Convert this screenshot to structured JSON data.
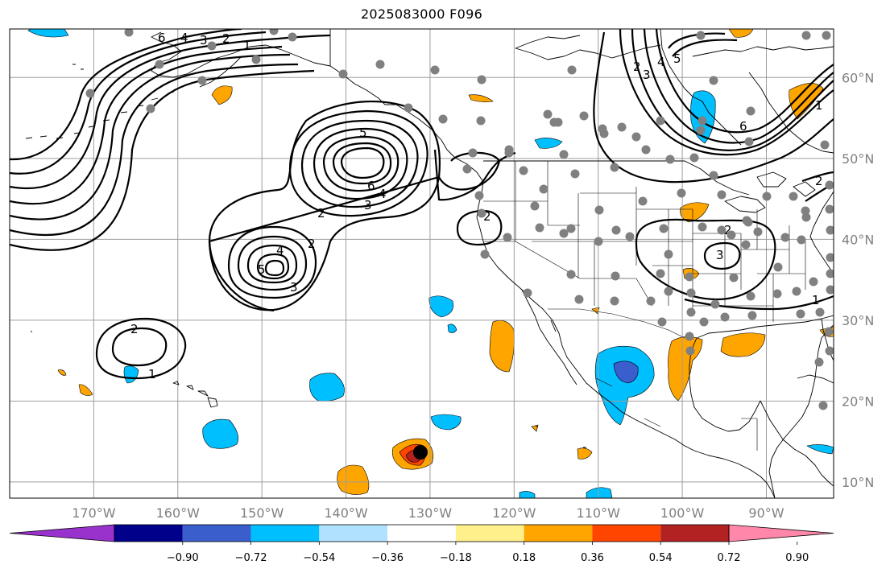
{
  "title": "2025083000 F096",
  "map": {
    "projection": "plate-carree",
    "lon_range": [
      -180,
      -82
    ],
    "lat_range": [
      8,
      66
    ],
    "lat_ticks": [
      {
        "value": 10,
        "label": "10°N"
      },
      {
        "value": 20,
        "label": "20°N"
      },
      {
        "value": 30,
        "label": "30°N"
      },
      {
        "value": 40,
        "label": "40°N"
      },
      {
        "value": 50,
        "label": "50°N"
      },
      {
        "value": 60,
        "label": "60°N"
      }
    ],
    "lon_ticks": [
      {
        "value": -170,
        "label": "170°W"
      },
      {
        "value": -160,
        "label": "160°W"
      },
      {
        "value": -150,
        "label": "150°W"
      },
      {
        "value": -140,
        "label": "140°W"
      },
      {
        "value": -130,
        "label": "130°W"
      },
      {
        "value": -120,
        "label": "120°W"
      },
      {
        "value": -110,
        "label": "110°W"
      },
      {
        "value": -100,
        "label": "100°W"
      },
      {
        "value": -90,
        "label": "90°W"
      }
    ],
    "gridlines": true,
    "land_outline_color": "#000000",
    "station_color": "#808080",
    "storm_marker_color": "#000000"
  },
  "colorbar": {
    "boundaries": [
      -0.9,
      -0.72,
      -0.54,
      -0.36,
      -0.18,
      0.18,
      0.36,
      0.54,
      0.72,
      0.9
    ],
    "tick_labels": [
      "−0.90",
      "−0.72",
      "−0.54",
      "−0.36",
      "−0.18",
      "0.18",
      "0.36",
      "0.54",
      "0.72",
      "0.90"
    ],
    "colors": [
      "#9932cc",
      "#00008b",
      "#3a5fcd",
      "#00bfff",
      "#b0e2ff",
      "#ffffff",
      "#fff08c",
      "#ffa500",
      "#ff4500",
      "#b22222",
      "#ff88aa"
    ],
    "extend": "both"
  },
  "contour_labels": [
    "1",
    "2",
    "3",
    "4",
    "5",
    "6"
  ]
}
